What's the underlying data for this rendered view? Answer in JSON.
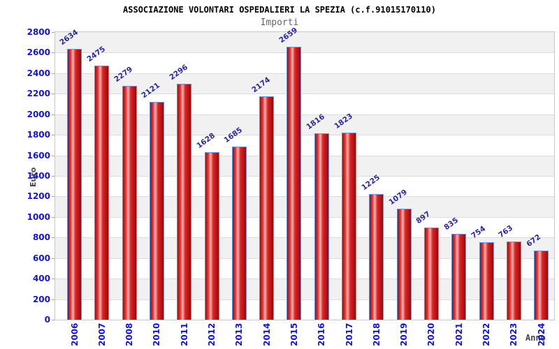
{
  "chart_data": {
    "type": "bar",
    "title": "ASSOCIAZIONE VOLONTARI OSPEDALIERI LA SPEZIA (c.f.91015170110)",
    "subtitle": "Importi",
    "xlabel": "Anno",
    "ylabel": "Euro",
    "categories": [
      "2006",
      "2007",
      "2008",
      "2010",
      "2011",
      "2012",
      "2013",
      "2014",
      "2015",
      "2016",
      "2017",
      "2018",
      "2019",
      "2020",
      "2021",
      "2022",
      "2023",
      "2024"
    ],
    "values": [
      2634,
      2475,
      2279,
      2121,
      2296,
      1628,
      1685,
      2174,
      2659,
      1816,
      1823,
      1225,
      1079,
      897,
      835,
      754,
      763,
      672
    ],
    "ylim": [
      0,
      2800
    ],
    "ytick_step": 200,
    "yticks": [
      0,
      200,
      400,
      600,
      800,
      1000,
      1200,
      1400,
      1600,
      1800,
      2000,
      2200,
      2400,
      2600,
      2800
    ],
    "grid": "horizontal-bands-alternating",
    "legend": "none"
  },
  "style": {
    "bar_border_color": "#5f96e8",
    "bar_gradient": [
      "#9d1010",
      "#ee3333",
      "#ffb9b9",
      "#e22222",
      "#8e0e0e"
    ],
    "ytick_label_color": "#1414cf",
    "xtick_label_color": "#1414cf",
    "value_label_color": "#2a2a9d",
    "title_color": "#000000",
    "subtitle_color": "#666666",
    "axis_title_color": "#444444",
    "band_color": "#f1f1f1",
    "gridline_color": "#dcdcdc",
    "axis_line_color": "#c9c9c9"
  }
}
